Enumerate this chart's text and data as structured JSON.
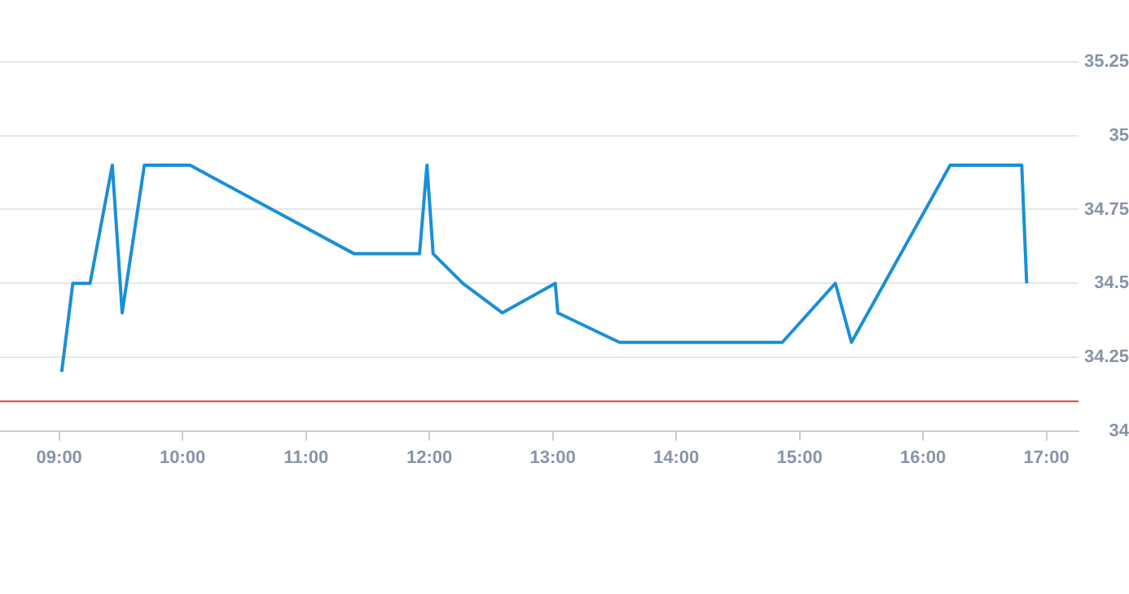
{
  "chart_data": {
    "type": "line",
    "x": [
      9.02,
      9.11,
      9.25,
      9.43,
      9.51,
      9.69,
      10.06,
      11.39,
      11.92,
      11.98,
      12.03,
      12.27,
      12.59,
      13.02,
      13.04,
      13.54,
      14.86,
      15.29,
      15.42,
      16.22,
      16.8,
      16.84
    ],
    "series": [
      {
        "color": "#1a8fd8",
        "values": [
          34.2,
          34.5,
          34.5,
          34.9,
          34.4,
          34.9,
          34.9,
          34.6,
          34.6,
          34.9,
          34.6,
          34.5,
          34.4,
          34.5,
          34.4,
          34.3,
          34.3,
          34.5,
          34.3,
          34.9,
          34.9,
          34.5
        ]
      }
    ],
    "xlim": [
      8.52,
      17.26
    ],
    "xticks": [
      {
        "value": 9,
        "label": "09:00"
      },
      {
        "value": 10,
        "label": "10:00"
      },
      {
        "value": 11,
        "label": "11:00"
      },
      {
        "value": 12,
        "label": "12:00"
      },
      {
        "value": 13,
        "label": "13:00"
      },
      {
        "value": 14,
        "label": "14:00"
      },
      {
        "value": 15,
        "label": "15:00"
      },
      {
        "value": 16,
        "label": "16:00"
      },
      {
        "value": 17,
        "label": "17:00"
      }
    ],
    "ylim": [
      34,
      35.25
    ],
    "yticks": [
      34,
      34.25,
      34.5,
      34.75,
      35,
      35.25
    ],
    "ref_lines": [
      {
        "axis": "y",
        "value": 34.1,
        "color": "#d9423a"
      }
    ],
    "grid": "y",
    "legend": false,
    "marker": "none",
    "line_style": "solid"
  }
}
